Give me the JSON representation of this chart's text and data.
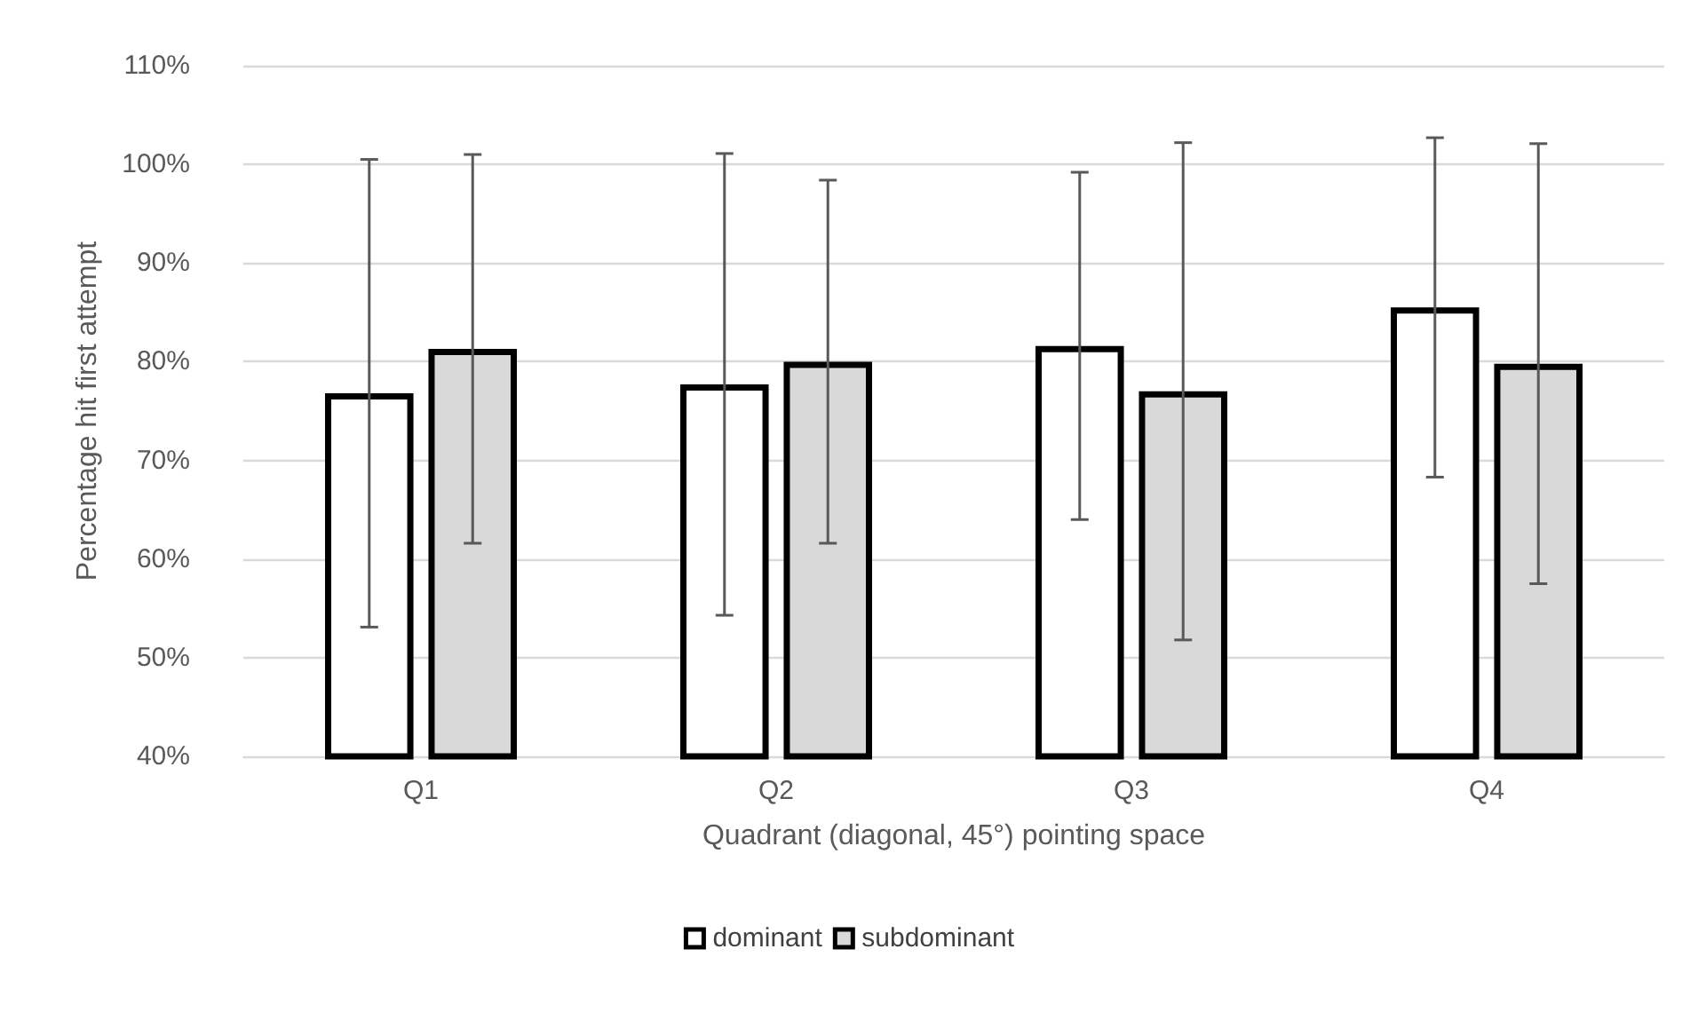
{
  "chart_data": {
    "type": "bar",
    "xlabel": "Quadrant (diagonal, 45°) pointing space",
    "ylabel": "Percentage hit first attempt",
    "categories": [
      "Q1",
      "Q2",
      "Q3",
      "Q4"
    ],
    "series": [
      {
        "name": "dominant",
        "color": "#ffffff",
        "values": [
          76.8,
          77.7,
          81.6,
          85.5
        ],
        "errors": [
          23.7,
          23.4,
          17.6,
          17.2
        ]
      },
      {
        "name": "subdominant",
        "color": "#d9d9d9",
        "values": [
          81.3,
          80.0,
          77.0,
          79.8
        ],
        "errors": [
          19.7,
          18.4,
          25.2,
          22.3
        ]
      }
    ],
    "ylim": [
      40,
      110
    ],
    "yticks": [
      {
        "value": 40,
        "label": "40%"
      },
      {
        "value": 50,
        "label": "50%"
      },
      {
        "value": 60,
        "label": "60%"
      },
      {
        "value": 70,
        "label": "70%"
      },
      {
        "value": 80,
        "label": "80%"
      },
      {
        "value": 90,
        "label": "90%"
      },
      {
        "value": 100,
        "label": "100%"
      },
      {
        "value": 110,
        "label": "110%"
      }
    ],
    "grid": "y",
    "legend": "bottom"
  }
}
